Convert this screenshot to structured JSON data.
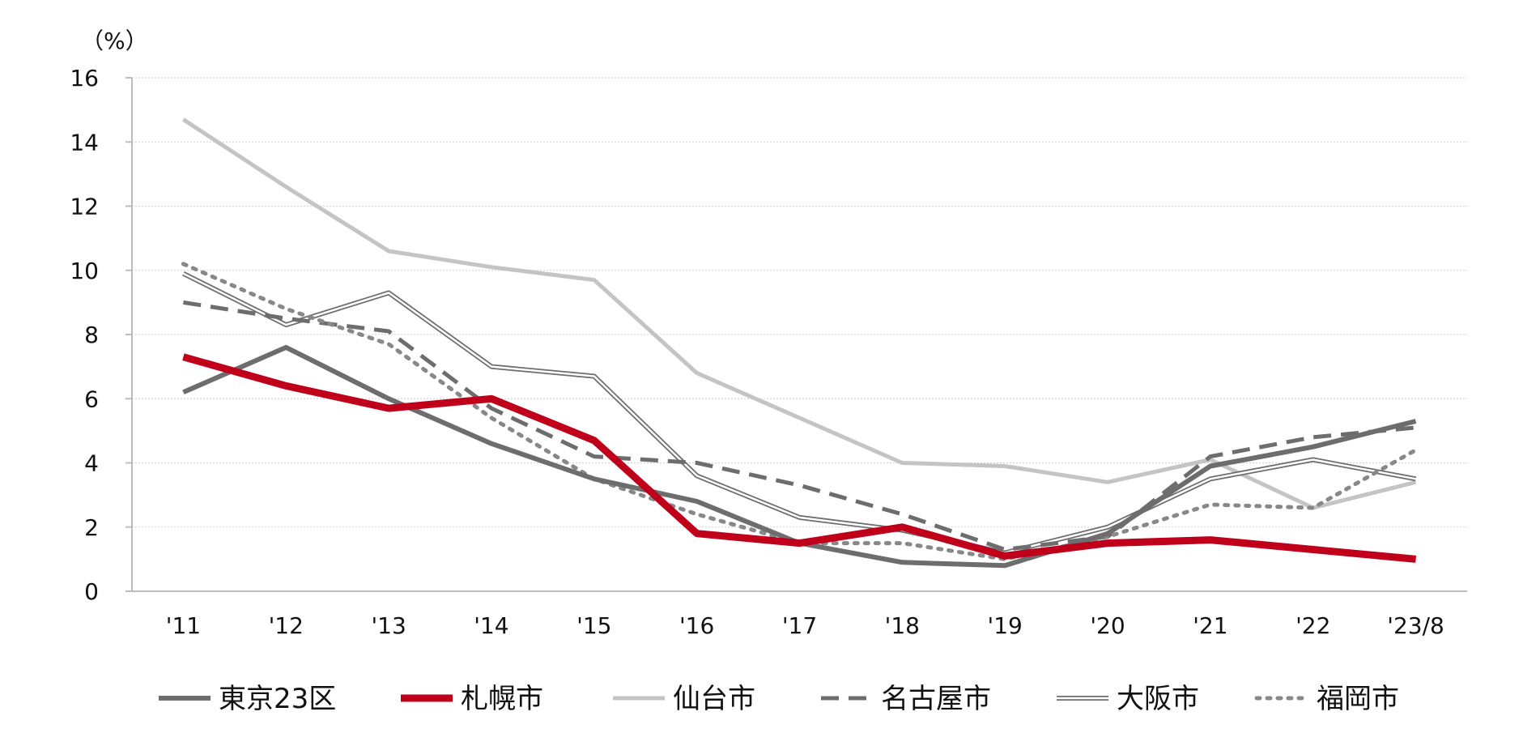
{
  "chart_data": {
    "type": "line",
    "title": "",
    "xlabel": "",
    "ylabel": "（%）",
    "categories": [
      "'11",
      "'12",
      "'13",
      "'14",
      "'15",
      "'16",
      "'17",
      "'18",
      "'19",
      "'20",
      "'21",
      "'22",
      "'23/8"
    ],
    "ylim": [
      0,
      16
    ],
    "yticks": [
      0,
      2,
      4,
      6,
      8,
      10,
      12,
      14,
      16
    ],
    "grid": true,
    "legend_position": "bottom",
    "series": [
      {
        "name": "東京23区",
        "values": [
          6.2,
          7.6,
          6.0,
          4.6,
          3.5,
          2.8,
          1.5,
          0.9,
          0.8,
          1.8,
          3.9,
          4.5,
          5.3
        ],
        "color": "#6d6d6d",
        "style": "solid-thick"
      },
      {
        "name": "札幌市",
        "values": [
          7.3,
          6.4,
          5.7,
          6.0,
          4.7,
          1.8,
          1.5,
          2.0,
          1.1,
          1.5,
          1.6,
          1.3,
          1.0
        ],
        "color": "#c0001a",
        "style": "solid-bold"
      },
      {
        "name": "仙台市",
        "values": [
          14.7,
          12.6,
          10.6,
          10.1,
          9.7,
          6.8,
          5.4,
          4.0,
          3.9,
          3.4,
          4.1,
          2.6,
          3.4
        ],
        "color": "#c4c4c4",
        "style": "solid-light"
      },
      {
        "name": "名古屋市",
        "values": [
          9.0,
          8.5,
          8.1,
          5.7,
          4.2,
          4.0,
          3.3,
          2.4,
          1.3,
          1.7,
          4.2,
          4.8,
          5.1
        ],
        "color": "#6d6d6d",
        "style": "dashed"
      },
      {
        "name": "大阪市",
        "values": [
          9.9,
          8.3,
          9.3,
          7.0,
          6.7,
          3.6,
          2.3,
          1.9,
          1.2,
          2.0,
          3.5,
          4.1,
          3.5
        ],
        "color": "#6d6d6d",
        "style": "double"
      },
      {
        "name": "福岡市",
        "values": [
          10.2,
          8.8,
          7.7,
          5.4,
          3.5,
          2.4,
          1.5,
          1.5,
          1.0,
          1.7,
          2.7,
          2.6,
          4.4
        ],
        "color": "#888888",
        "style": "dotted"
      }
    ]
  }
}
